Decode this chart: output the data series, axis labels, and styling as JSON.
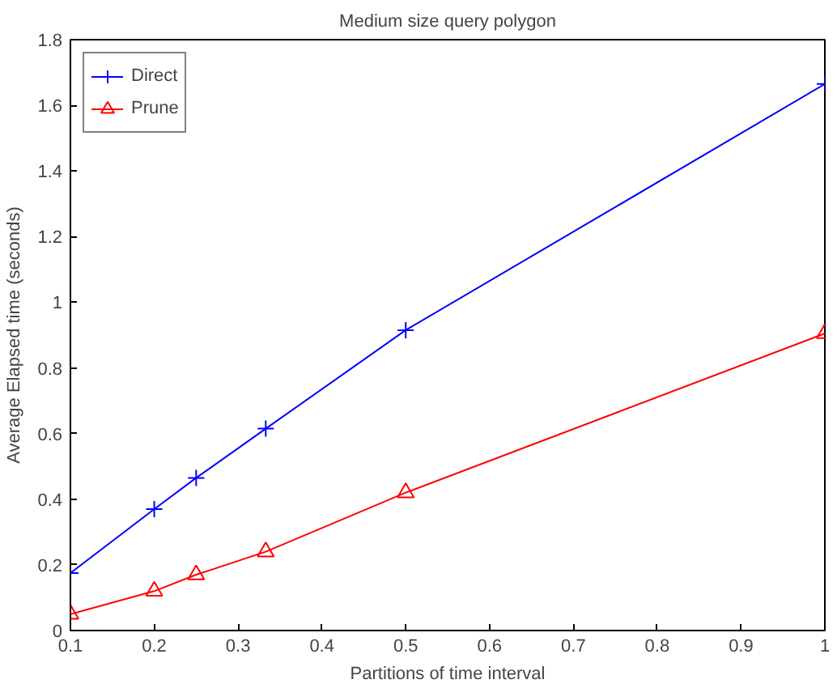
{
  "chart_data": {
    "type": "line",
    "title": "Medium size query polygon",
    "xlabel": "Partitions of time interval",
    "ylabel": "Average Elapsed time (seconds)",
    "x": [
      0.1,
      0.2,
      0.25,
      0.333,
      0.5,
      1
    ],
    "series": [
      {
        "name": "Direct",
        "color": "#0000ff",
        "marker": "cross",
        "values": [
          0.175,
          0.37,
          0.465,
          0.615,
          0.915,
          1.665
        ]
      },
      {
        "name": "Prune",
        "color": "#ff0000",
        "marker": "triangle",
        "values": [
          0.05,
          0.12,
          0.17,
          0.24,
          0.42,
          0.905
        ]
      }
    ],
    "xlim": [
      0.1,
      1
    ],
    "ylim": [
      0,
      1.8
    ],
    "xticks": [
      0.1,
      0.2,
      0.3,
      0.4,
      0.5,
      0.6,
      0.7,
      0.8,
      0.9,
      1
    ],
    "yticks": [
      0,
      0.2,
      0.4,
      0.6,
      0.8,
      1,
      1.2,
      1.4,
      1.6,
      1.8
    ],
    "grid": false,
    "legend": "top left",
    "line_style": "solid"
  }
}
